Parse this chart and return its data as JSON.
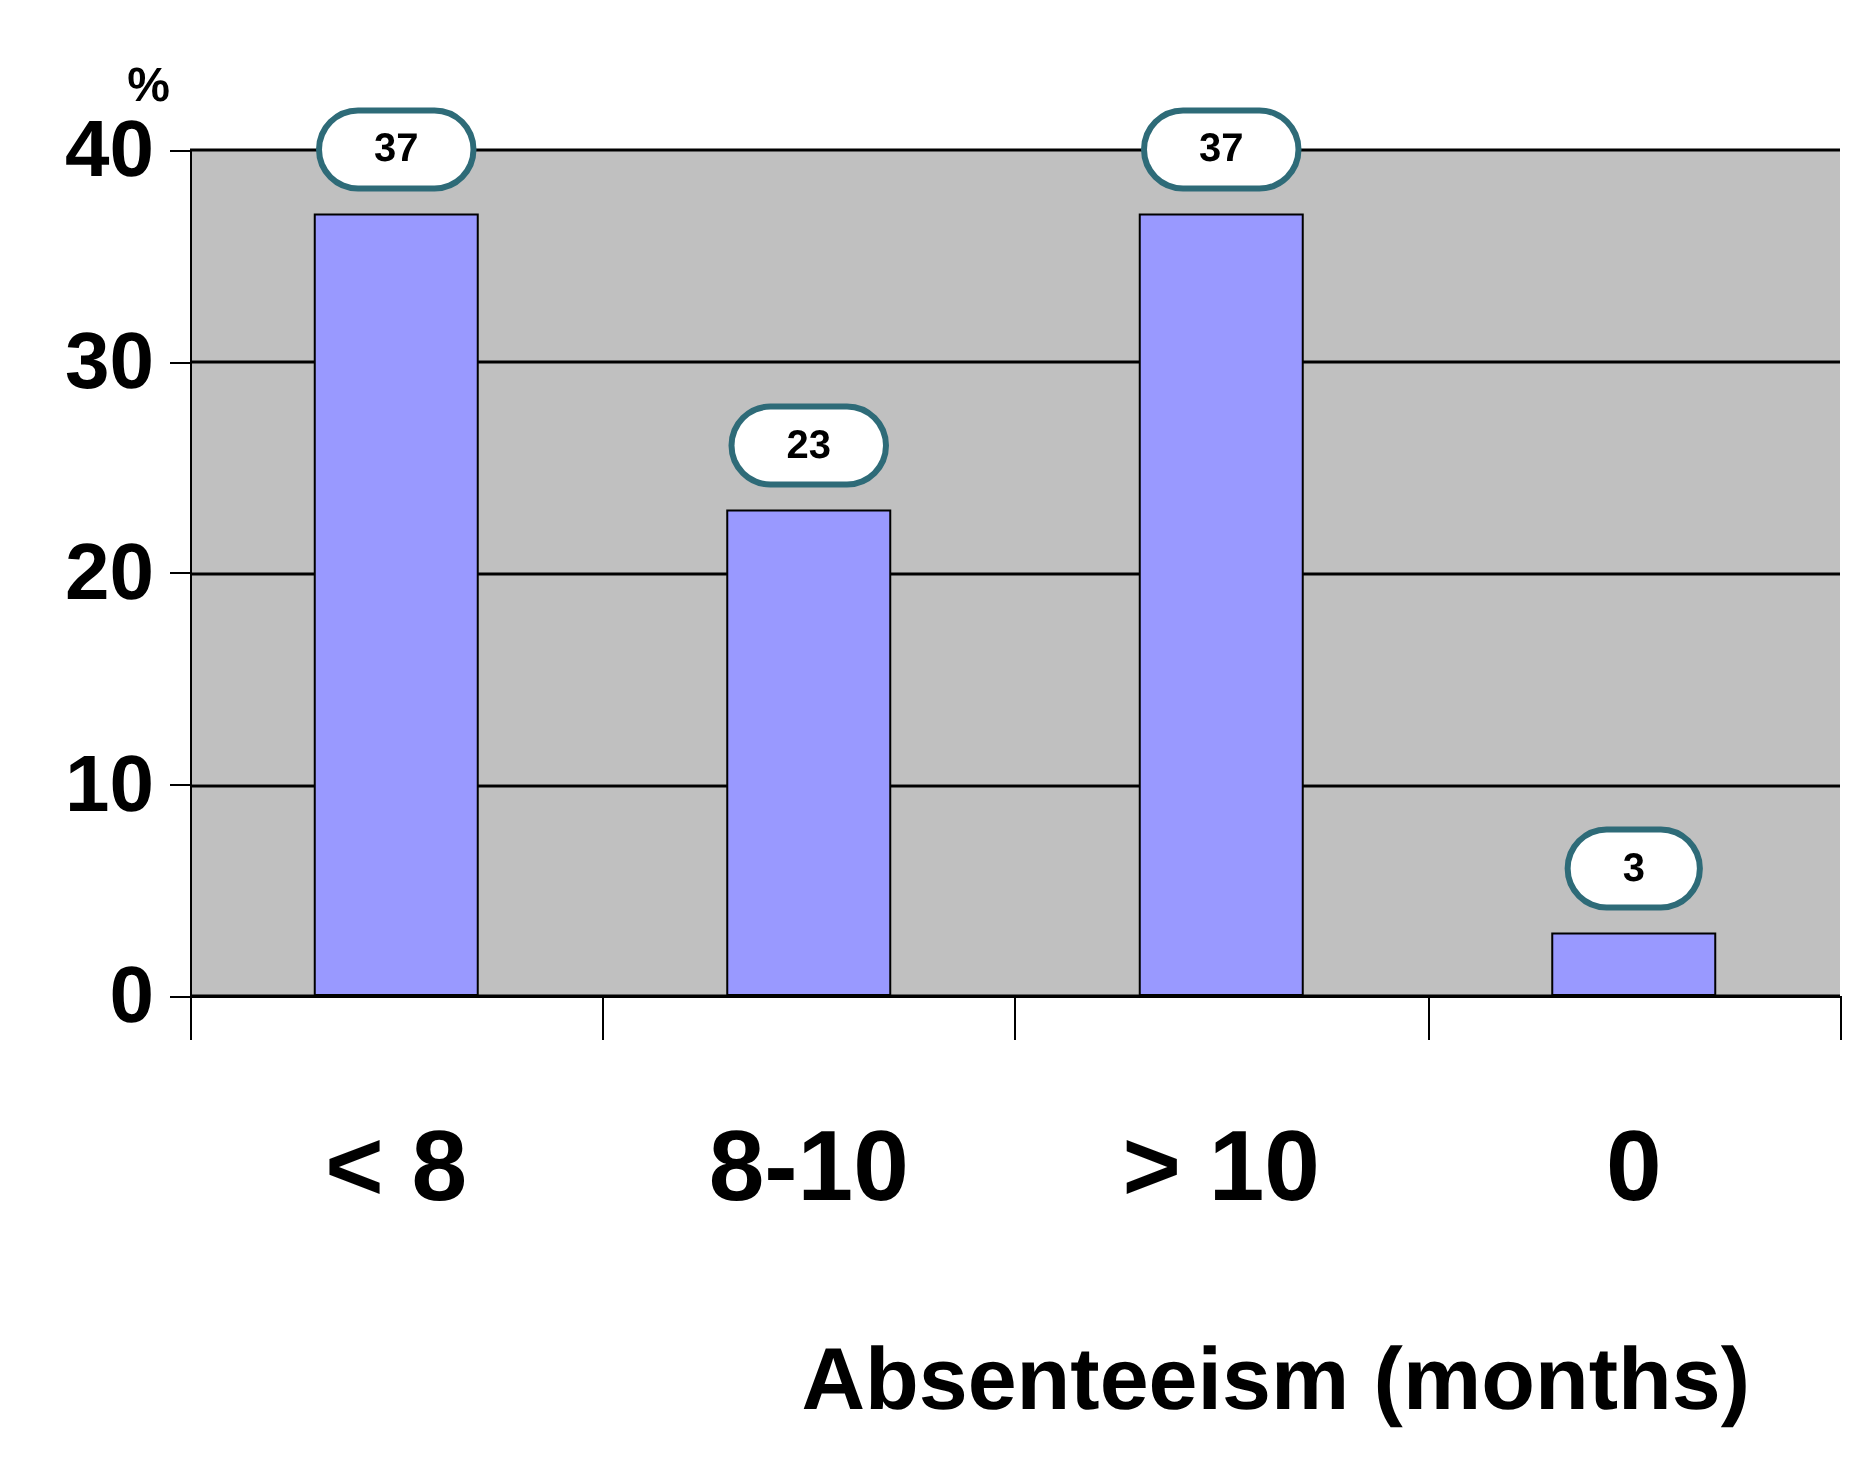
{
  "chart_data": {
    "type": "bar",
    "ylabel": "%",
    "xlabel": "Absenteeism (months)",
    "categories": [
      "< 8",
      "8-10",
      "> 10",
      "0"
    ],
    "values": [
      37,
      23,
      37,
      3
    ],
    "color": "#9999ff",
    "ylim": [
      0,
      40
    ],
    "yticks": [
      0,
      10,
      20,
      30,
      40
    ],
    "grid": "y",
    "data_labels": true
  }
}
